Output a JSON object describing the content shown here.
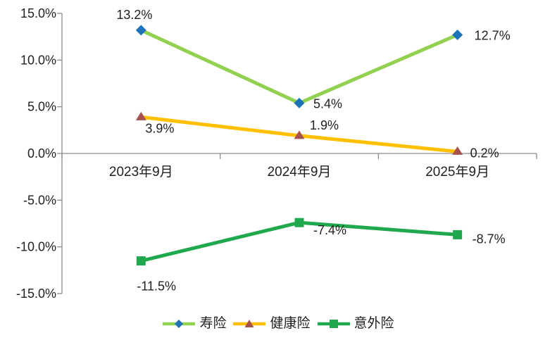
{
  "chart_data": {
    "type": "line",
    "title": "",
    "categories": [
      "2023年9月",
      "2024年9月",
      "2025年9月"
    ],
    "series": [
      {
        "key": "life",
        "name": "寿险",
        "values": [
          13.2,
          5.4,
          12.7
        ],
        "data_labels": [
          "13.2%",
          "5.4%",
          "12.7%"
        ],
        "line_color": "#92D050",
        "marker": "diamond",
        "marker_color": "#1E73B8"
      },
      {
        "key": "health",
        "name": "健康险",
        "values": [
          3.9,
          1.9,
          0.2
        ],
        "data_labels": [
          "3.9%",
          "1.9%",
          "0.2%"
        ],
        "line_color": "#FFC000",
        "marker": "triangle",
        "marker_color": "#A6534F"
      },
      {
        "key": "accident",
        "name": "意外险",
        "values": [
          -11.5,
          -7.4,
          -8.7
        ],
        "data_labels": [
          "-11.5%",
          "-7.4%",
          "-8.7%"
        ],
        "line_color": "#1FA84D",
        "marker": "square",
        "marker_color": "#1FA84D"
      }
    ],
    "y_axis": {
      "min": -15,
      "max": 15,
      "step": 5,
      "tick_labels": [
        "15.0%",
        "10.0%",
        "5.0%",
        "0.0%",
        "-5.0%",
        "-10.0%",
        "-15.0%"
      ]
    },
    "grid": false,
    "legend_position": "bottom",
    "axis_color": "#8C8C8C",
    "text_color": "#1F1F1F",
    "background": "#FFFFFF"
  }
}
